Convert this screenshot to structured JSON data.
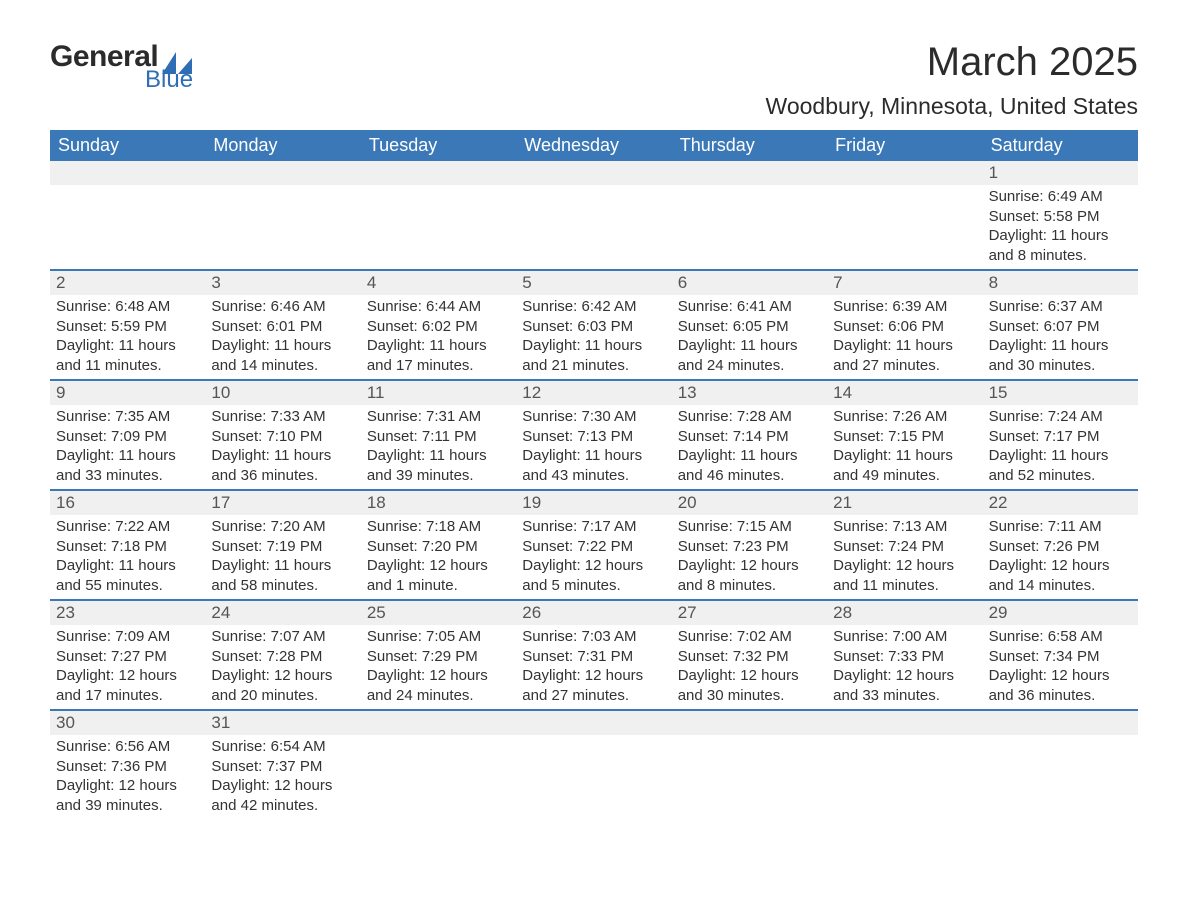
{
  "logo": {
    "text_top": "General",
    "text_bottom": "Blue",
    "top_color": "#2b2b2b",
    "bottom_color": "#2f6eb5",
    "sail_color": "#2f6eb5"
  },
  "header": {
    "month_title": "March 2025",
    "location": "Woodbury, Minnesota, United States"
  },
  "styling": {
    "header_bg": "#3b78b8",
    "header_fg": "#ffffff",
    "row_divider": "#3b78b8",
    "daynum_bg": "#f0f0f0",
    "text_color": "#333333",
    "font_family": "Arial",
    "title_fontsize": 40,
    "location_fontsize": 23,
    "dayheader_fontsize": 18,
    "daynum_fontsize": 17,
    "detail_fontsize": 15
  },
  "day_names": [
    "Sunday",
    "Monday",
    "Tuesday",
    "Wednesday",
    "Thursday",
    "Friday",
    "Saturday"
  ],
  "weeks": [
    [
      null,
      null,
      null,
      null,
      null,
      null,
      {
        "n": "1",
        "sr": "Sunrise: 6:49 AM",
        "ss": "Sunset: 5:58 PM",
        "dl": "Daylight: 11 hours and 8 minutes."
      }
    ],
    [
      {
        "n": "2",
        "sr": "Sunrise: 6:48 AM",
        "ss": "Sunset: 5:59 PM",
        "dl": "Daylight: 11 hours and 11 minutes."
      },
      {
        "n": "3",
        "sr": "Sunrise: 6:46 AM",
        "ss": "Sunset: 6:01 PM",
        "dl": "Daylight: 11 hours and 14 minutes."
      },
      {
        "n": "4",
        "sr": "Sunrise: 6:44 AM",
        "ss": "Sunset: 6:02 PM",
        "dl": "Daylight: 11 hours and 17 minutes."
      },
      {
        "n": "5",
        "sr": "Sunrise: 6:42 AM",
        "ss": "Sunset: 6:03 PM",
        "dl": "Daylight: 11 hours and 21 minutes."
      },
      {
        "n": "6",
        "sr": "Sunrise: 6:41 AM",
        "ss": "Sunset: 6:05 PM",
        "dl": "Daylight: 11 hours and 24 minutes."
      },
      {
        "n": "7",
        "sr": "Sunrise: 6:39 AM",
        "ss": "Sunset: 6:06 PM",
        "dl": "Daylight: 11 hours and 27 minutes."
      },
      {
        "n": "8",
        "sr": "Sunrise: 6:37 AM",
        "ss": "Sunset: 6:07 PM",
        "dl": "Daylight: 11 hours and 30 minutes."
      }
    ],
    [
      {
        "n": "9",
        "sr": "Sunrise: 7:35 AM",
        "ss": "Sunset: 7:09 PM",
        "dl": "Daylight: 11 hours and 33 minutes."
      },
      {
        "n": "10",
        "sr": "Sunrise: 7:33 AM",
        "ss": "Sunset: 7:10 PM",
        "dl": "Daylight: 11 hours and 36 minutes."
      },
      {
        "n": "11",
        "sr": "Sunrise: 7:31 AM",
        "ss": "Sunset: 7:11 PM",
        "dl": "Daylight: 11 hours and 39 minutes."
      },
      {
        "n": "12",
        "sr": "Sunrise: 7:30 AM",
        "ss": "Sunset: 7:13 PM",
        "dl": "Daylight: 11 hours and 43 minutes."
      },
      {
        "n": "13",
        "sr": "Sunrise: 7:28 AM",
        "ss": "Sunset: 7:14 PM",
        "dl": "Daylight: 11 hours and 46 minutes."
      },
      {
        "n": "14",
        "sr": "Sunrise: 7:26 AM",
        "ss": "Sunset: 7:15 PM",
        "dl": "Daylight: 11 hours and 49 minutes."
      },
      {
        "n": "15",
        "sr": "Sunrise: 7:24 AM",
        "ss": "Sunset: 7:17 PM",
        "dl": "Daylight: 11 hours and 52 minutes."
      }
    ],
    [
      {
        "n": "16",
        "sr": "Sunrise: 7:22 AM",
        "ss": "Sunset: 7:18 PM",
        "dl": "Daylight: 11 hours and 55 minutes."
      },
      {
        "n": "17",
        "sr": "Sunrise: 7:20 AM",
        "ss": "Sunset: 7:19 PM",
        "dl": "Daylight: 11 hours and 58 minutes."
      },
      {
        "n": "18",
        "sr": "Sunrise: 7:18 AM",
        "ss": "Sunset: 7:20 PM",
        "dl": "Daylight: 12 hours and 1 minute."
      },
      {
        "n": "19",
        "sr": "Sunrise: 7:17 AM",
        "ss": "Sunset: 7:22 PM",
        "dl": "Daylight: 12 hours and 5 minutes."
      },
      {
        "n": "20",
        "sr": "Sunrise: 7:15 AM",
        "ss": "Sunset: 7:23 PM",
        "dl": "Daylight: 12 hours and 8 minutes."
      },
      {
        "n": "21",
        "sr": "Sunrise: 7:13 AM",
        "ss": "Sunset: 7:24 PM",
        "dl": "Daylight: 12 hours and 11 minutes."
      },
      {
        "n": "22",
        "sr": "Sunrise: 7:11 AM",
        "ss": "Sunset: 7:26 PM",
        "dl": "Daylight: 12 hours and 14 minutes."
      }
    ],
    [
      {
        "n": "23",
        "sr": "Sunrise: 7:09 AM",
        "ss": "Sunset: 7:27 PM",
        "dl": "Daylight: 12 hours and 17 minutes."
      },
      {
        "n": "24",
        "sr": "Sunrise: 7:07 AM",
        "ss": "Sunset: 7:28 PM",
        "dl": "Daylight: 12 hours and 20 minutes."
      },
      {
        "n": "25",
        "sr": "Sunrise: 7:05 AM",
        "ss": "Sunset: 7:29 PM",
        "dl": "Daylight: 12 hours and 24 minutes."
      },
      {
        "n": "26",
        "sr": "Sunrise: 7:03 AM",
        "ss": "Sunset: 7:31 PM",
        "dl": "Daylight: 12 hours and 27 minutes."
      },
      {
        "n": "27",
        "sr": "Sunrise: 7:02 AM",
        "ss": "Sunset: 7:32 PM",
        "dl": "Daylight: 12 hours and 30 minutes."
      },
      {
        "n": "28",
        "sr": "Sunrise: 7:00 AM",
        "ss": "Sunset: 7:33 PM",
        "dl": "Daylight: 12 hours and 33 minutes."
      },
      {
        "n": "29",
        "sr": "Sunrise: 6:58 AM",
        "ss": "Sunset: 7:34 PM",
        "dl": "Daylight: 12 hours and 36 minutes."
      }
    ],
    [
      {
        "n": "30",
        "sr": "Sunrise: 6:56 AM",
        "ss": "Sunset: 7:36 PM",
        "dl": "Daylight: 12 hours and 39 minutes."
      },
      {
        "n": "31",
        "sr": "Sunrise: 6:54 AM",
        "ss": "Sunset: 7:37 PM",
        "dl": "Daylight: 12 hours and 42 minutes."
      },
      null,
      null,
      null,
      null,
      null
    ]
  ]
}
